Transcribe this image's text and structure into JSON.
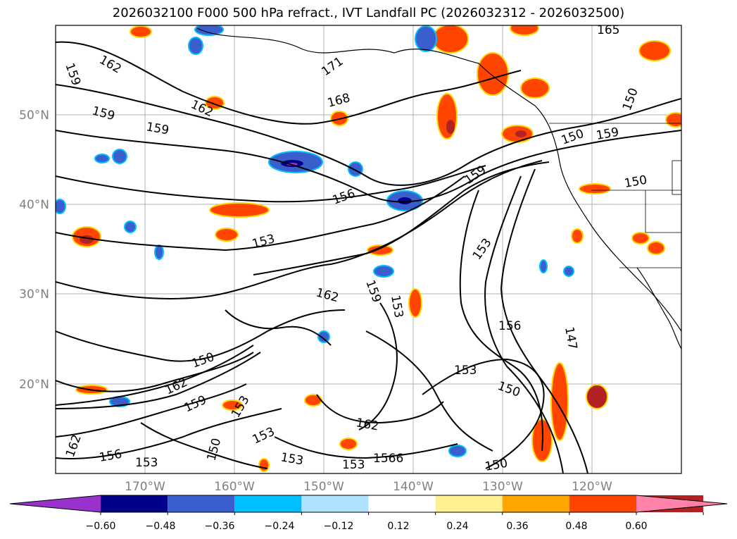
{
  "title": "2026032100 F000 500 hPa refract., IVT Landfall PC (2026032312 - 2026032500)",
  "lat_labels": [
    "50°N",
    "40°N",
    "30°N",
    "20°N"
  ],
  "lon_labels": [
    "170°W",
    "160°W",
    "150°W",
    "140°W",
    "130°W",
    "120°W"
  ],
  "colorbar": {
    "ticks": [
      "−0.60",
      "−0.48",
      "−0.36",
      "−0.24",
      "−0.12",
      "0.12",
      "0.24",
      "0.36",
      "0.48",
      "0.60"
    ],
    "colors": [
      "#9932cc",
      "#00008b",
      "#3a5fcd",
      "#00bfff",
      "#b0e2ff",
      "#ffffff",
      "#fff08f",
      "#ffa500",
      "#ff4500",
      "#b22222",
      "#ff82ab"
    ]
  },
  "contour_labels": [
    {
      "text": "162"
    },
    {
      "text": "159"
    },
    {
      "text": "159"
    },
    {
      "text": "162"
    },
    {
      "text": "159"
    },
    {
      "text": "171"
    },
    {
      "text": "168"
    },
    {
      "text": "165"
    },
    {
      "text": "156"
    },
    {
      "text": "153"
    },
    {
      "text": "159"
    },
    {
      "text": "153"
    },
    {
      "text": "162"
    },
    {
      "text": "159"
    },
    {
      "text": "153"
    },
    {
      "text": "156"
    },
    {
      "text": "147"
    },
    {
      "text": "153"
    },
    {
      "text": "150"
    },
    {
      "text": "150"
    },
    {
      "text": "162"
    },
    {
      "text": "159"
    },
    {
      "text": "153"
    },
    {
      "text": "162"
    },
    {
      "text": "156"
    },
    {
      "text": "153"
    },
    {
      "text": "150"
    },
    {
      "text": "153"
    },
    {
      "text": "153"
    },
    {
      "text": "153"
    },
    {
      "text": "1566"
    },
    {
      "text": "150"
    },
    {
      "text": "150"
    },
    {
      "text": "159"
    },
    {
      "text": "150"
    },
    {
      "text": "150"
    },
    {
      "text": "162"
    }
  ]
}
